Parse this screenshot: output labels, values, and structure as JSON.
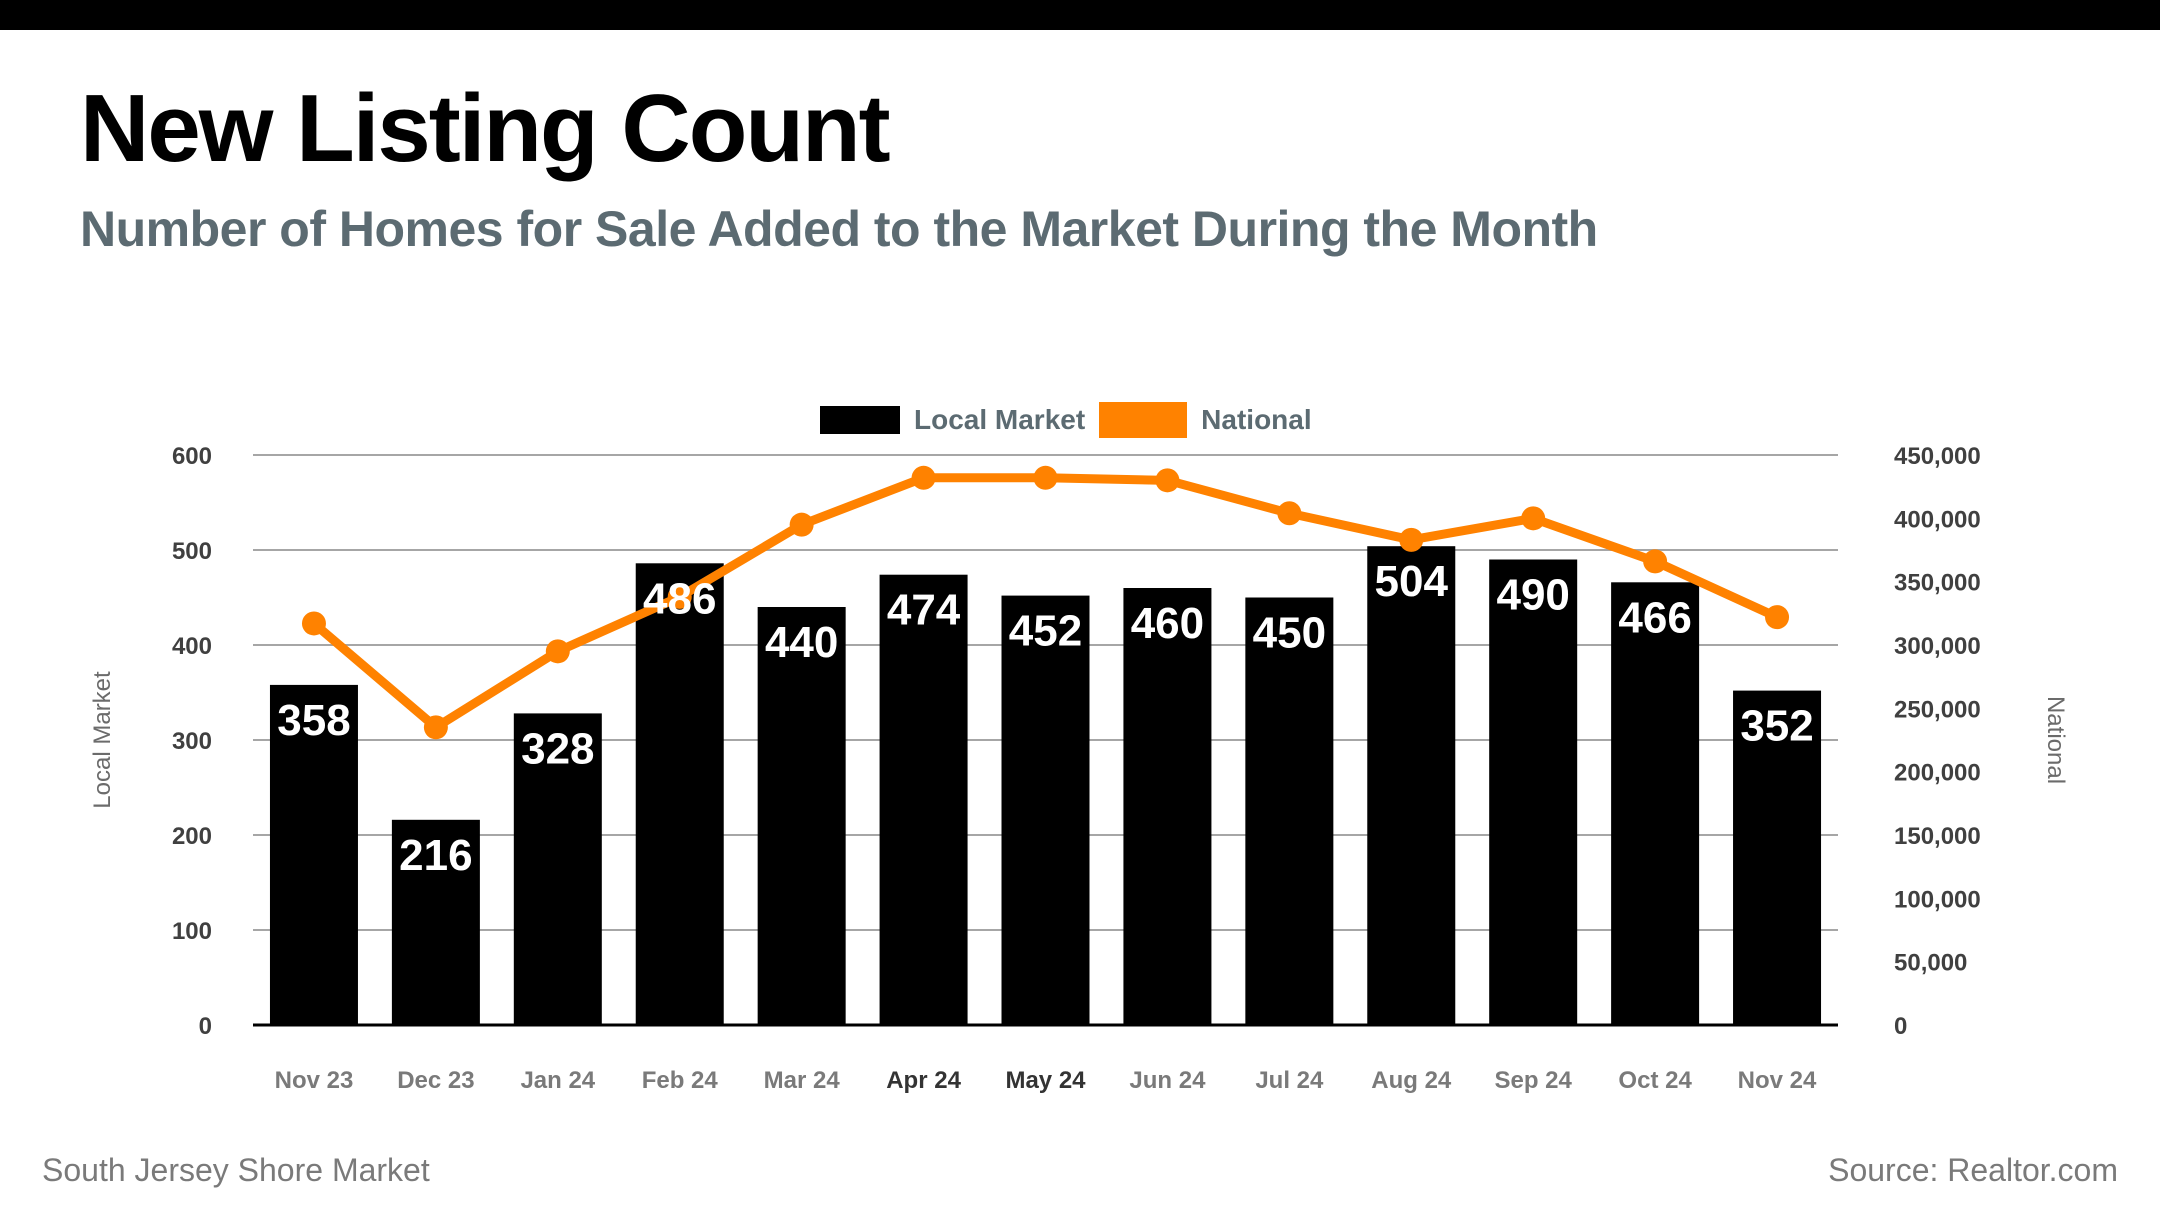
{
  "header": {
    "title": "New Listing Count",
    "subtitle": "Number of Homes for Sale Added to the Market During the Month"
  },
  "footer": {
    "left": "South Jersey Shore Market",
    "right": "Source: Realtor.com"
  },
  "colors": {
    "local": "#000000",
    "national": "#ff8200",
    "grid": "#a6a6a6",
    "tick_text": "#404040",
    "axis_title": "#6b6b6b",
    "subtitle": "#5c6b72"
  },
  "chart_data": {
    "type": "bar",
    "combo": "bar+line (dual axis)",
    "title": "New Listing Count",
    "subtitle": "Number of Homes for Sale Added to the Market During the Month",
    "categories": [
      "Nov 23",
      "Dec 23",
      "Jan 24",
      "Feb 24",
      "Mar 24",
      "Apr 24",
      "May 24",
      "Jun 24",
      "Jul 24",
      "Aug 24",
      "Sep 24",
      "Oct 24",
      "Nov 24"
    ],
    "series": [
      {
        "name": "Local Market",
        "type": "bar",
        "axis": "left",
        "values": [
          358,
          216,
          328,
          486,
          440,
          474,
          452,
          460,
          450,
          504,
          490,
          466,
          352
        ],
        "data_labels": true
      },
      {
        "name": "National",
        "type": "line",
        "axis": "right",
        "values": [
          317000,
          235000,
          295000,
          338000,
          395000,
          432000,
          432000,
          430000,
          404000,
          383000,
          400000,
          366000,
          322000
        ],
        "data_labels": false
      }
    ],
    "ylabel": "Local Market",
    "ylabel_right": "National",
    "ylim": [
      0,
      600
    ],
    "ylim_right": [
      0,
      450000
    ],
    "yticks": [
      "0",
      "100",
      "200",
      "300",
      "400",
      "500",
      "600"
    ],
    "yticks_right": [
      "0",
      "50,000",
      "100,000",
      "150,000",
      "200,000",
      "250,000",
      "300,000",
      "350,000",
      "400,000",
      "450,000"
    ],
    "grid": true,
    "legend": "top-center"
  }
}
